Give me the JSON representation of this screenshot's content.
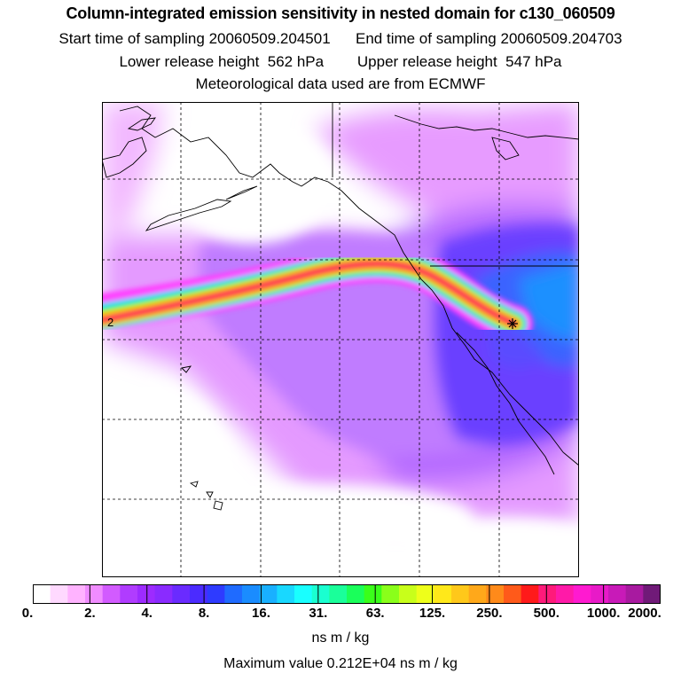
{
  "header": {
    "title": "Column-integrated emission sensitivity in nested domain for c130_060509",
    "start_label": "Start time of sampling",
    "start_value": "20060509.204501",
    "end_label": "End time of sampling",
    "end_value": "20060509.204703",
    "lower_label": "Lower release height",
    "lower_value": "562 hPa",
    "upper_label": "Upper release height",
    "upper_value": "547 hPa",
    "met_text": "Meteorological data used are from ECMWF"
  },
  "map": {
    "trajectory_label": "2",
    "release_marker": "release-point-star"
  },
  "legend": {
    "tick_labels": [
      "0.",
      "2.",
      "4.",
      "8.",
      "16.",
      "31.",
      "63.",
      "125.",
      "250.",
      "500.",
      "1000.",
      "2000."
    ],
    "colors": [
      "#ffffff",
      "#ffd9ff",
      "#ffb3ff",
      "#f08cff",
      "#d25bff",
      "#b03cff",
      "#9d2bff",
      "#8a2bff",
      "#6a2bff",
      "#4b2bff",
      "#2e3bff",
      "#1f6bff",
      "#1a8cff",
      "#19b0ff",
      "#19d8ff",
      "#19ffff",
      "#1affd0",
      "#1aff9a",
      "#1aff5a",
      "#3aff1a",
      "#8aff1a",
      "#c8ff1a",
      "#eeff1a",
      "#ffe81a",
      "#ffc81a",
      "#ffa81a",
      "#ff8a1a",
      "#ff5a1a",
      "#ff1a1a",
      "#ff1a7a",
      "#ff1aa8",
      "#ff1ad0",
      "#e81ac8",
      "#c81ab8",
      "#a81aa0",
      "#701a78"
    ],
    "units": "ns m / kg",
    "max_label": "Maximum value",
    "max_value": "0.212E+04 ns m / kg"
  }
}
